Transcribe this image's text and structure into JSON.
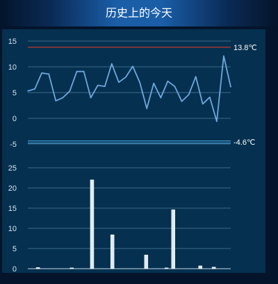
{
  "header": {
    "title": "历史上的今天"
  },
  "chart_data": [
    {
      "type": "line",
      "title": "",
      "xlabel": "",
      "ylabel": "",
      "ylim": [
        -5,
        15
      ],
      "yticks": [
        -5,
        0,
        5,
        10,
        15
      ],
      "grid": true,
      "series": [
        {
          "color": "#6fa8e0",
          "values": [
            5.3,
            5.7,
            8.8,
            8.6,
            3.4,
            4.0,
            5.3,
            9.1,
            9.1,
            4.0,
            6.4,
            6.2,
            10.6,
            7.0,
            8.0,
            10.1,
            7.0,
            1.9,
            6.8,
            4.0,
            7.2,
            6.2,
            3.3,
            4.6,
            8.1,
            2.8,
            4.1,
            -0.6,
            12.1,
            6.1
          ]
        }
      ],
      "reference_lines": [
        {
          "value": 13.8,
          "label": "13.8℃",
          "color": "#c0392b"
        },
        {
          "value": -4.6,
          "label": "-4.6℃",
          "color": "#4fb3f0"
        }
      ]
    },
    {
      "type": "bar",
      "title": "",
      "xlabel": "",
      "ylabel": "",
      "ylim": [
        0,
        25
      ],
      "yticks": [
        0,
        5,
        10,
        15,
        20,
        25
      ],
      "grid": true,
      "values": [
        0,
        0.3,
        0,
        0,
        0,
        0,
        0.2,
        0,
        0,
        22.0,
        0,
        0,
        8.4,
        0,
        0,
        0,
        0,
        3.4,
        0,
        0,
        0.2,
        14.6,
        0,
        0,
        0,
        0.7,
        0,
        0.4,
        0,
        0
      ],
      "color": "#dfeaf4"
    }
  ]
}
